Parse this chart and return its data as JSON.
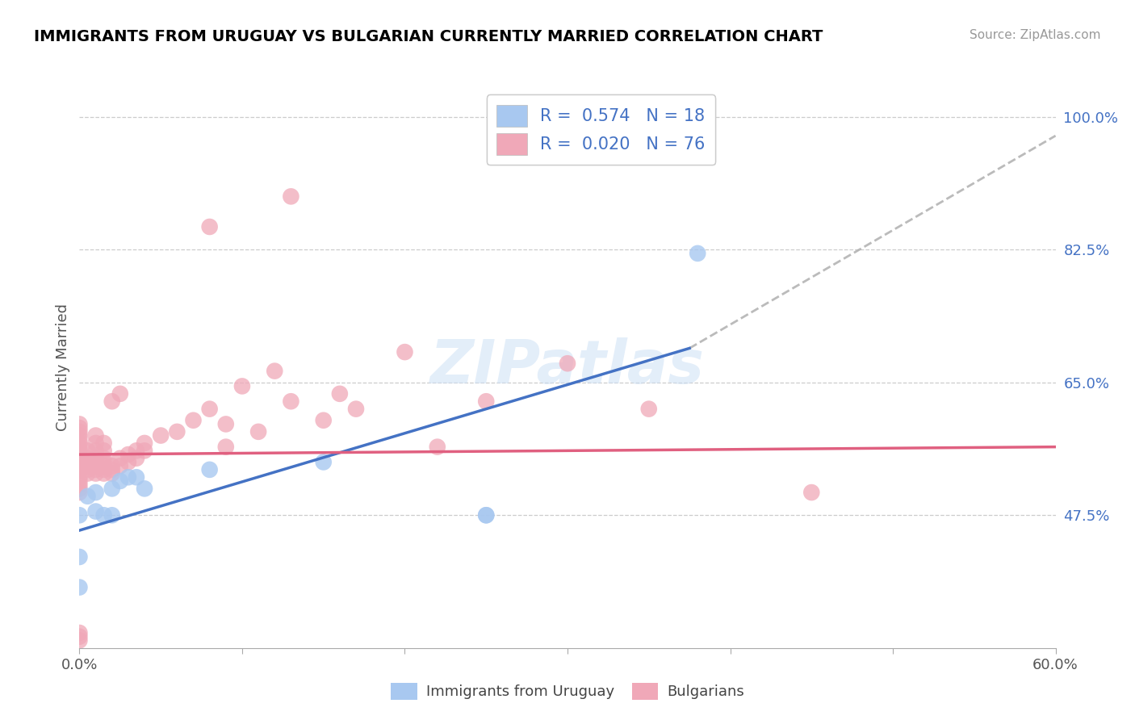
{
  "title": "IMMIGRANTS FROM URUGUAY VS BULGARIAN CURRENTLY MARRIED CORRELATION CHART",
  "source": "Source: ZipAtlas.com",
  "ylabel": "Currently Married",
  "xlim": [
    0.0,
    0.6
  ],
  "ylim": [
    0.3,
    1.04
  ],
  "watermark": "ZIPatlas",
  "uruguay_color": "#a8c8f0",
  "bulgarians_color": "#f0a8b8",
  "uruguay_line_color": "#4472c4",
  "bulgarians_line_color": "#e06080",
  "uruguay_scatter": [
    [
      0.0,
      0.42
    ],
    [
      0.0,
      0.475
    ],
    [
      0.005,
      0.5
    ],
    [
      0.01,
      0.48
    ],
    [
      0.01,
      0.505
    ],
    [
      0.015,
      0.475
    ],
    [
      0.02,
      0.51
    ],
    [
      0.025,
      0.52
    ],
    [
      0.03,
      0.525
    ],
    [
      0.035,
      0.525
    ],
    [
      0.04,
      0.51
    ],
    [
      0.08,
      0.535
    ],
    [
      0.15,
      0.545
    ],
    [
      0.25,
      0.475
    ],
    [
      0.38,
      0.82
    ],
    [
      0.0,
      0.38
    ],
    [
      0.02,
      0.475
    ],
    [
      0.25,
      0.475
    ]
  ],
  "bulgarians_scatter": [
    [
      0.0,
      0.535
    ],
    [
      0.0,
      0.54
    ],
    [
      0.0,
      0.545
    ],
    [
      0.0,
      0.55
    ],
    [
      0.0,
      0.555
    ],
    [
      0.0,
      0.56
    ],
    [
      0.0,
      0.565
    ],
    [
      0.0,
      0.57
    ],
    [
      0.0,
      0.575
    ],
    [
      0.0,
      0.58
    ],
    [
      0.0,
      0.585
    ],
    [
      0.0,
      0.59
    ],
    [
      0.0,
      0.595
    ],
    [
      0.0,
      0.505
    ],
    [
      0.0,
      0.51
    ],
    [
      0.0,
      0.515
    ],
    [
      0.0,
      0.52
    ],
    [
      0.0,
      0.525
    ],
    [
      0.005,
      0.53
    ],
    [
      0.005,
      0.535
    ],
    [
      0.005,
      0.54
    ],
    [
      0.005,
      0.545
    ],
    [
      0.005,
      0.55
    ],
    [
      0.005,
      0.56
    ],
    [
      0.01,
      0.53
    ],
    [
      0.01,
      0.535
    ],
    [
      0.01,
      0.54
    ],
    [
      0.01,
      0.545
    ],
    [
      0.01,
      0.55
    ],
    [
      0.01,
      0.56
    ],
    [
      0.01,
      0.57
    ],
    [
      0.01,
      0.58
    ],
    [
      0.015,
      0.53
    ],
    [
      0.015,
      0.535
    ],
    [
      0.015,
      0.54
    ],
    [
      0.015,
      0.545
    ],
    [
      0.015,
      0.55
    ],
    [
      0.015,
      0.56
    ],
    [
      0.015,
      0.57
    ],
    [
      0.02,
      0.53
    ],
    [
      0.02,
      0.535
    ],
    [
      0.02,
      0.54
    ],
    [
      0.025,
      0.54
    ],
    [
      0.025,
      0.55
    ],
    [
      0.03,
      0.545
    ],
    [
      0.03,
      0.555
    ],
    [
      0.035,
      0.55
    ],
    [
      0.035,
      0.56
    ],
    [
      0.04,
      0.56
    ],
    [
      0.04,
      0.57
    ],
    [
      0.06,
      0.585
    ],
    [
      0.07,
      0.6
    ],
    [
      0.09,
      0.565
    ],
    [
      0.025,
      0.635
    ],
    [
      0.08,
      0.855
    ],
    [
      0.13,
      0.895
    ],
    [
      0.0,
      0.32
    ],
    [
      0.0,
      0.315
    ],
    [
      0.0,
      0.31
    ],
    [
      0.02,
      0.625
    ],
    [
      0.45,
      0.505
    ],
    [
      0.13,
      0.625
    ],
    [
      0.15,
      0.6
    ],
    [
      0.17,
      0.615
    ],
    [
      0.2,
      0.69
    ],
    [
      0.12,
      0.665
    ],
    [
      0.16,
      0.635
    ],
    [
      0.22,
      0.565
    ],
    [
      0.25,
      0.625
    ],
    [
      0.3,
      0.675
    ],
    [
      0.35,
      0.615
    ],
    [
      0.1,
      0.645
    ],
    [
      0.11,
      0.585
    ],
    [
      0.05,
      0.58
    ],
    [
      0.08,
      0.615
    ],
    [
      0.09,
      0.595
    ]
  ],
  "uruguay_line_solid": [
    [
      0.0,
      0.455
    ],
    [
      0.375,
      0.695
    ]
  ],
  "uruguay_line_dashed": [
    [
      0.375,
      0.695
    ],
    [
      0.6,
      0.975
    ]
  ],
  "bulgarians_line": [
    [
      0.0,
      0.555
    ],
    [
      0.6,
      0.565
    ]
  ],
  "grid_yticks": [
    0.475,
    0.65,
    0.825,
    1.0
  ],
  "right_ytick_labels": [
    "47.5%",
    "65.0%",
    "82.5%",
    "100.0%"
  ],
  "xticks": [
    0.0,
    0.6
  ],
  "xtick_labels": [
    "0.0%",
    "60.0%"
  ]
}
